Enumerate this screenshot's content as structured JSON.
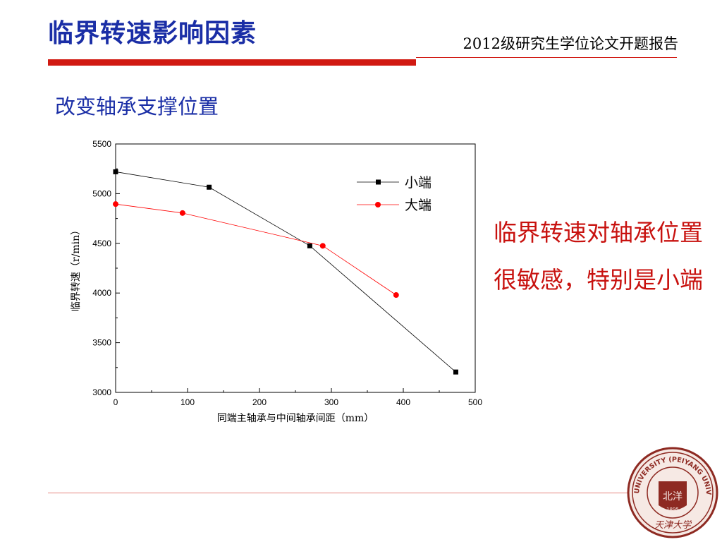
{
  "slide": {
    "title": "临界转速影响因素",
    "header_note": "2012级研究生学位论文开题报告",
    "section_heading": "改变轴承支撑位置",
    "callout": "临界转速对轴承位置很敏感，特别是小端",
    "accent_color": "#d11a12",
    "title_color": "#1a2ea6",
    "callout_color": "#c8120f"
  },
  "seal": {
    "ring_text_top": "TIANJIN UNIVERSITY (PEIYANG UNIVERSITY)",
    "year": "1895",
    "center_text": "北洋",
    "bottom_text": "天津大学",
    "color": "#8e2a22"
  },
  "chart_data": {
    "type": "line",
    "xlabel": "同端主轴承与中间轴承间距（mm）",
    "ylabel": "临界转速（r/min）",
    "xlim": [
      0,
      500
    ],
    "ylim": [
      3000,
      5500
    ],
    "xticks": [
      0,
      100,
      200,
      300,
      400,
      500
    ],
    "yticks": [
      3000,
      3500,
      4000,
      4500,
      5000,
      5500
    ],
    "legend_position": "top-right",
    "series": [
      {
        "name": "小端",
        "color": "#000000",
        "marker": "square",
        "x": [
          0,
          130,
          270,
          473
        ],
        "y": [
          5220,
          5065,
          4475,
          3205
        ]
      },
      {
        "name": "大端",
        "color": "#ff0000",
        "marker": "circle",
        "x": [
          0,
          93,
          288,
          390
        ],
        "y": [
          4895,
          4805,
          4475,
          3980
        ]
      }
    ]
  }
}
